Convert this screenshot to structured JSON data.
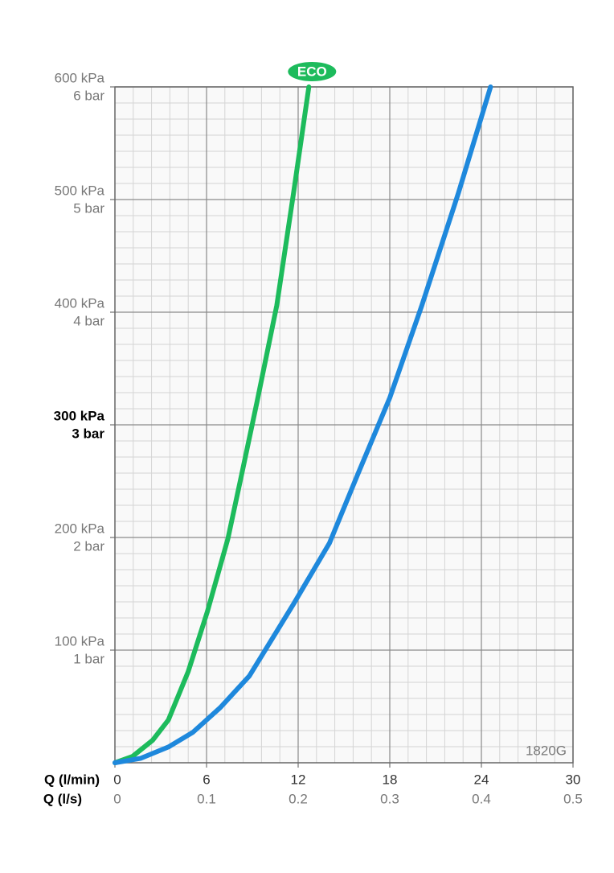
{
  "chart_data": {
    "type": "line",
    "xlabel": "Q (l/min)",
    "x2label": "Q (l/s)",
    "xlim": [
      0,
      30
    ],
    "xticks": [
      0,
      6,
      12,
      18,
      24,
      30
    ],
    "x2lim": [
      0,
      0.5
    ],
    "x2ticks": [
      0,
      0.1,
      0.2,
      0.3,
      0.4,
      0.5
    ],
    "ylim": [
      0,
      600
    ],
    "yticks": [
      {
        "value": 100,
        "label": "100 kPa"
      },
      {
        "value": 200,
        "label": "200 kPa"
      },
      {
        "value": 300,
        "label": "300 kPa"
      },
      {
        "value": 400,
        "label": "400 kPa"
      },
      {
        "value": 500,
        "label": "500 kPa"
      },
      {
        "value": 600,
        "label": "600 kPa"
      }
    ],
    "ybar_labels": [
      "1 bar",
      "2 bar",
      "3 bar",
      "4 bar",
      "5 bar",
      "6 bar"
    ],
    "emphasized_ytick": 300,
    "grid": true,
    "minor_grid": {
      "x": 5,
      "y": 7
    },
    "model": "1820G",
    "series": [
      {
        "name": "ECO",
        "color": "#1dbb5c",
        "x": [
          0,
          1.16,
          2.47,
          3.5,
          4.8,
          6.05,
          7.4,
          8.3,
          9.3,
          10.6,
          11.7,
          12.7
        ],
        "values": [
          0,
          5.7,
          20,
          38,
          81,
          134,
          199,
          256,
          320,
          406,
          506,
          600
        ]
      },
      {
        "color": "#1e88dc",
        "x": [
          0,
          1.7,
          3.5,
          5.1,
          6.9,
          8.8,
          11.7,
          14.05,
          15.9,
          18,
          20.1,
          22.5,
          24.6
        ],
        "values": [
          0,
          4,
          14,
          27,
          49,
          77,
          141,
          195,
          256,
          324,
          406,
          506,
          600
        ]
      }
    ]
  }
}
